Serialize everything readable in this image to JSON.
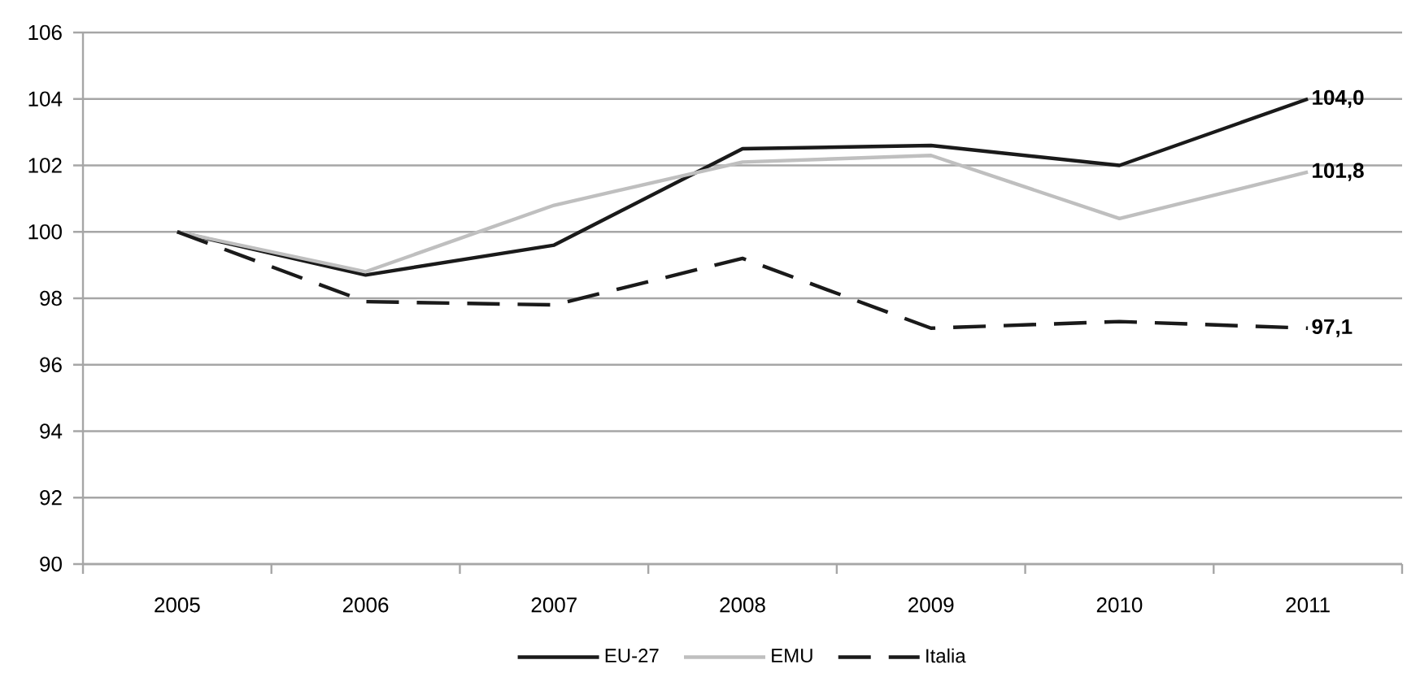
{
  "chart_data": {
    "type": "line",
    "categories": [
      "2005",
      "2006",
      "2007",
      "2008",
      "2009",
      "2010",
      "2011"
    ],
    "series": [
      {
        "name": "EU-27",
        "color": "#1a1a1a",
        "line_style": "solid",
        "values": [
          100,
          98.7,
          99.6,
          102.5,
          102.6,
          102.0,
          104.0
        ],
        "value_labels": [
          null,
          null,
          null,
          null,
          null,
          null,
          "104,0"
        ]
      },
      {
        "name": "EMU",
        "color": "#bfbfbf",
        "line_style": "solid",
        "values": [
          100,
          98.8,
          100.8,
          102.1,
          102.3,
          100.4,
          101.8
        ],
        "value_labels": [
          null,
          null,
          null,
          null,
          null,
          null,
          "101,8"
        ]
      },
      {
        "name": "Italia",
        "color": "#1a1a1a",
        "line_style": "dashed",
        "values": [
          100,
          97.9,
          97.8,
          99.2,
          97.1,
          97.3,
          97.1
        ],
        "value_labels": [
          null,
          null,
          null,
          null,
          null,
          null,
          "97,1"
        ]
      }
    ],
    "ylim": [
      90,
      106
    ],
    "yticks": [
      90,
      92,
      94,
      96,
      98,
      100,
      102,
      104,
      106
    ],
    "grid": "y",
    "legend": "bottom"
  }
}
